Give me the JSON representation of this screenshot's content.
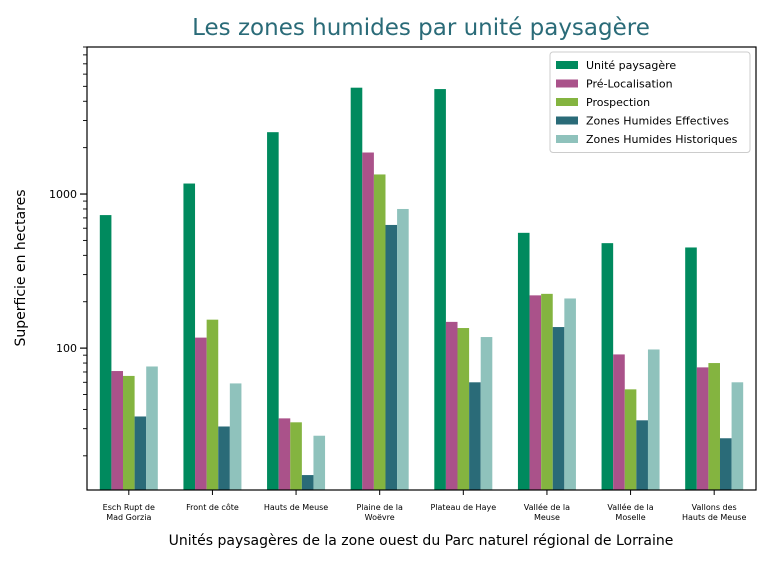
{
  "chart_data": {
    "type": "bar",
    "title": "Les zones humides par unité paysagère",
    "xlabel": "Unités paysagères de la zone ouest du Parc naturel régional de Lorraine",
    "ylabel": "Superficie en hectares",
    "yscale": "log",
    "ylim": [
      12,
      9000
    ],
    "yticks": [
      {
        "value": 100,
        "label": "100"
      },
      {
        "value": 1000,
        "label": "1000"
      }
    ],
    "categories": [
      [
        "Esch Rupt de",
        "Mad Gorzia"
      ],
      [
        "Front de côte"
      ],
      [
        "Hauts de Meuse"
      ],
      [
        "Plaine de la",
        "Woëvre"
      ],
      [
        "Plateau de Haye"
      ],
      [
        "Vallée de la",
        "Meuse"
      ],
      [
        "Vallée de la",
        "Moselle"
      ],
      [
        "Vallons des",
        "Hauts de Meuse"
      ]
    ],
    "series": [
      {
        "name": "Unité paysagère",
        "color": "#008a5e",
        "values": [
          730,
          1170,
          2520,
          4900,
          4800,
          560,
          480,
          450
        ]
      },
      {
        "name": "Pré-Localisation",
        "color": "#aa528a",
        "values": [
          71,
          117,
          35,
          1860,
          148,
          220,
          91,
          75
        ]
      },
      {
        "name": "Prospection",
        "color": "#84b440",
        "values": [
          66,
          153,
          33,
          1340,
          135,
          225,
          54,
          80
        ]
      },
      {
        "name": "Zones Humides Effectives",
        "color": "#2a6b78",
        "values": [
          36,
          31,
          15,
          630,
          60,
          137,
          34,
          26
        ]
      },
      {
        "name": "Zones Humides Historiques",
        "color": "#8fc2bc",
        "values": [
          76,
          59,
          27,
          800,
          118,
          210,
          98,
          60
        ]
      }
    ],
    "legend": "top-right",
    "grid": false
  }
}
